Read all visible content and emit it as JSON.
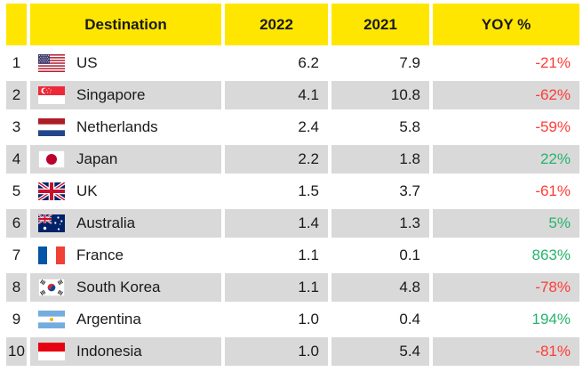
{
  "chart_data": {
    "type": "table",
    "title": "",
    "columns": [
      "",
      "Destination",
      "2022",
      "2021",
      "YOY %"
    ],
    "rows": [
      {
        "rank": "1",
        "flag": "us",
        "destination": "US",
        "v2022": "6.2",
        "v2021": "7.9",
        "yoy": "-21%"
      },
      {
        "rank": "2",
        "flag": "sg",
        "destination": "Singapore",
        "v2022": "4.1",
        "v2021": "10.8",
        "yoy": "-62%"
      },
      {
        "rank": "3",
        "flag": "nl",
        "destination": "Netherlands",
        "v2022": "2.4",
        "v2021": "5.8",
        "yoy": "-59%"
      },
      {
        "rank": "4",
        "flag": "jp",
        "destination": "Japan",
        "v2022": "2.2",
        "v2021": "1.8",
        "yoy": "22%"
      },
      {
        "rank": "5",
        "flag": "uk",
        "destination": "UK",
        "v2022": "1.5",
        "v2021": "3.7",
        "yoy": "-61%"
      },
      {
        "rank": "6",
        "flag": "au",
        "destination": "Australia",
        "v2022": "1.4",
        "v2021": "1.3",
        "yoy": "5%"
      },
      {
        "rank": "7",
        "flag": "fr",
        "destination": "France",
        "v2022": "1.1",
        "v2021": "0.1",
        "yoy": "863%"
      },
      {
        "rank": "8",
        "flag": "kr",
        "destination": "South Korea",
        "v2022": "1.1",
        "v2021": "4.8",
        "yoy": "-78%"
      },
      {
        "rank": "9",
        "flag": "ar",
        "destination": "Argentina",
        "v2022": "1.0",
        "v2021": "0.4",
        "yoy": "194%"
      },
      {
        "rank": "10",
        "flag": "id",
        "destination": "Indonesia",
        "v2022": "1.0",
        "v2021": "5.4",
        "yoy": "-81%"
      }
    ],
    "layout": {
      "grid": "off",
      "alternating_rows": true,
      "header_style": "yellow-band"
    }
  },
  "colors": {
    "header_bg": "#FFE600",
    "alt_row_bg": "#D9D9D9",
    "text": "#1A1A1A",
    "negative": "#FF3B36",
    "positive": "#27B26B"
  }
}
